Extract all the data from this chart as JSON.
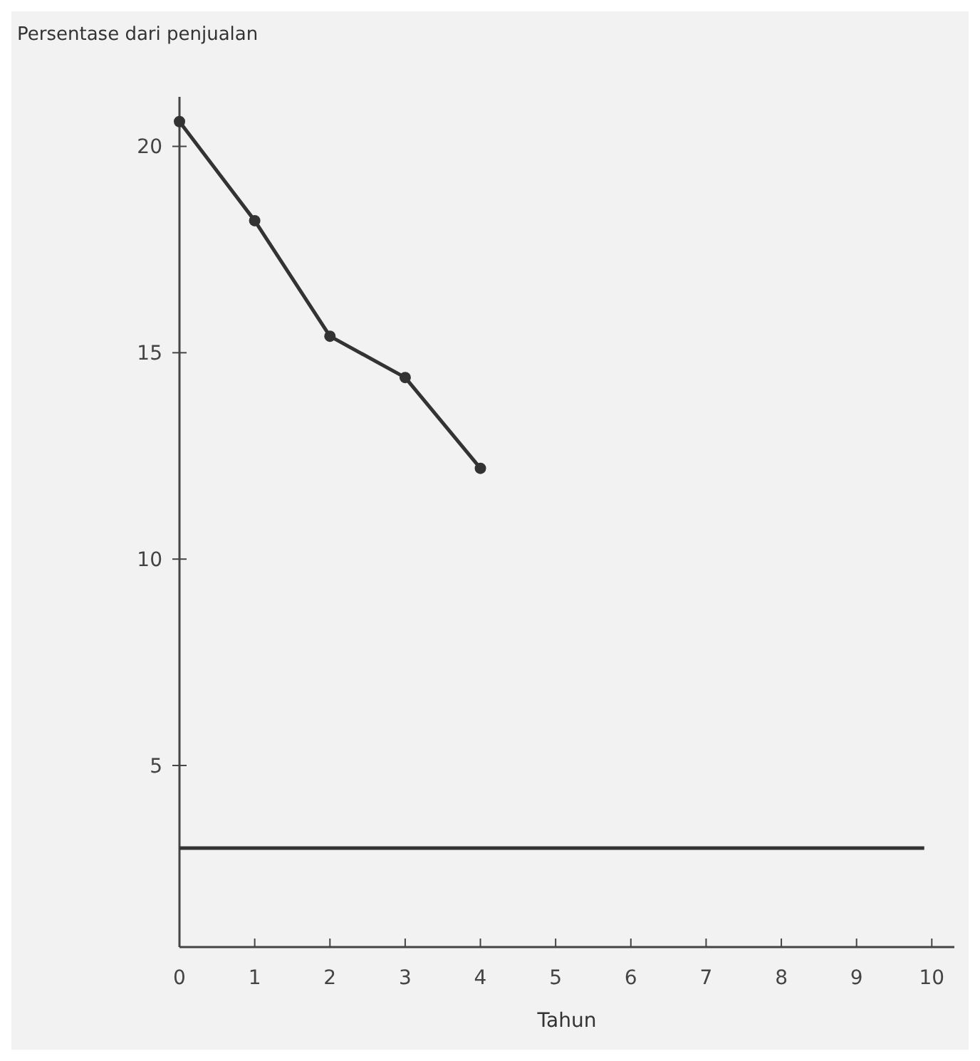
{
  "chart_data": {
    "type": "line",
    "ylabel": "Persentase dari penjualan",
    "xlabel": "Tahun",
    "x": [
      0,
      1,
      2,
      3,
      4
    ],
    "series": [
      {
        "color": "#333333",
        "values": [
          20.6,
          18.2,
          15.4,
          14.4,
          12.2
        ],
        "marker": "circle"
      },
      {
        "color": "#333333",
        "x": [
          0,
          9.9
        ],
        "values": [
          3,
          3
        ],
        "marker": "none"
      }
    ],
    "xlim": [
      0,
      10.3
    ],
    "xticks": [
      0,
      1,
      2,
      3,
      4,
      5,
      6,
      7,
      8,
      9,
      10
    ],
    "ylim": [
      0.6,
      21.2
    ],
    "yticks": [
      5,
      10,
      15,
      20
    ],
    "grid": false
  }
}
